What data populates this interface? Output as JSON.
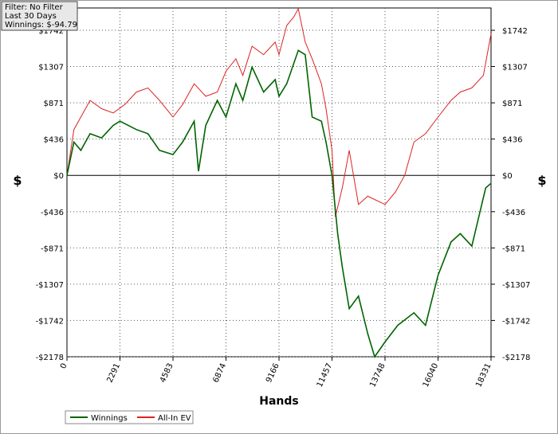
{
  "chart_data": {
    "type": "line",
    "info": [
      "Filter: No Filter",
      "Last  30 Days",
      "Winnings: $-94.79"
    ],
    "xlabel": "Hands",
    "ylabel": "$",
    "xlim": [
      0,
      18331
    ],
    "xticks": [
      0,
      2291,
      4583,
      6874,
      9166,
      11457,
      13748,
      16040,
      18331
    ],
    "ylim": [
      -2178,
      2010
    ],
    "yticks": [
      {
        "value": -2178,
        "label": "-$2178"
      },
      {
        "value": -1742,
        "label": "-$1742"
      },
      {
        "value": -1307,
        "label": "-$1307"
      },
      {
        "value": -871,
        "label": "-$871"
      },
      {
        "value": -436,
        "label": "-$436"
      },
      {
        "value": 0,
        "label": "$0"
      },
      {
        "value": 436,
        "label": "$436"
      },
      {
        "value": 871,
        "label": "$871"
      },
      {
        "value": 1307,
        "label": "$1307"
      },
      {
        "value": 1742,
        "label": "$1742"
      }
    ],
    "grid": true,
    "legend": "bottom-left",
    "series": [
      {
        "name": "Winnings",
        "color": "#006400",
        "x": [
          0,
          300,
          600,
          1000,
          1500,
          2000,
          2291,
          3000,
          3500,
          4000,
          4583,
          5000,
          5500,
          5685,
          6000,
          6500,
          6874,
          7300,
          7600,
          8000,
          8500,
          9000,
          9166,
          9500,
          10000,
          10300,
          10600,
          11000,
          11200,
          11457,
          11700,
          11900,
          12200,
          12600,
          13000,
          13300,
          13748,
          14300,
          15000,
          15500,
          16040,
          16600,
          17000,
          17500,
          17800,
          18100,
          18331
        ],
        "values": [
          0,
          400,
          300,
          500,
          450,
          600,
          650,
          550,
          500,
          300,
          250,
          400,
          650,
          50,
          600,
          900,
          700,
          1100,
          900,
          1300,
          1000,
          1150,
          950,
          1100,
          1500,
          1450,
          700,
          650,
          400,
          0,
          -700,
          -1100,
          -1600,
          -1450,
          -1900,
          -2178,
          -2000,
          -1800,
          -1650,
          -1800,
          -1200,
          -800,
          -700,
          -850,
          -500,
          -150,
          -95
        ]
      },
      {
        "name": "All-In EV",
        "color": "#dd2222",
        "x": [
          0,
          300,
          600,
          1000,
          1500,
          2000,
          2500,
          3000,
          3500,
          4000,
          4583,
          5000,
          5500,
          6000,
          6500,
          6874,
          7300,
          7600,
          8000,
          8500,
          9000,
          9166,
          9500,
          9800,
          10000,
          10300,
          10600,
          11000,
          11200,
          11457,
          11600,
          11900,
          12200,
          12600,
          13000,
          13748,
          14200,
          14600,
          15000,
          15500,
          16040,
          16600,
          17000,
          17500,
          18000,
          18331
        ],
        "values": [
          0,
          550,
          700,
          900,
          800,
          750,
          850,
          1000,
          1050,
          900,
          700,
          850,
          1100,
          950,
          1000,
          1250,
          1400,
          1200,
          1550,
          1450,
          1600,
          1450,
          1800,
          1900,
          2000,
          1600,
          1400,
          1100,
          800,
          300,
          -500,
          -150,
          300,
          -350,
          -250,
          -350,
          -200,
          0,
          400,
          500,
          700,
          900,
          1000,
          1050,
          1200,
          1700
        ]
      }
    ]
  }
}
